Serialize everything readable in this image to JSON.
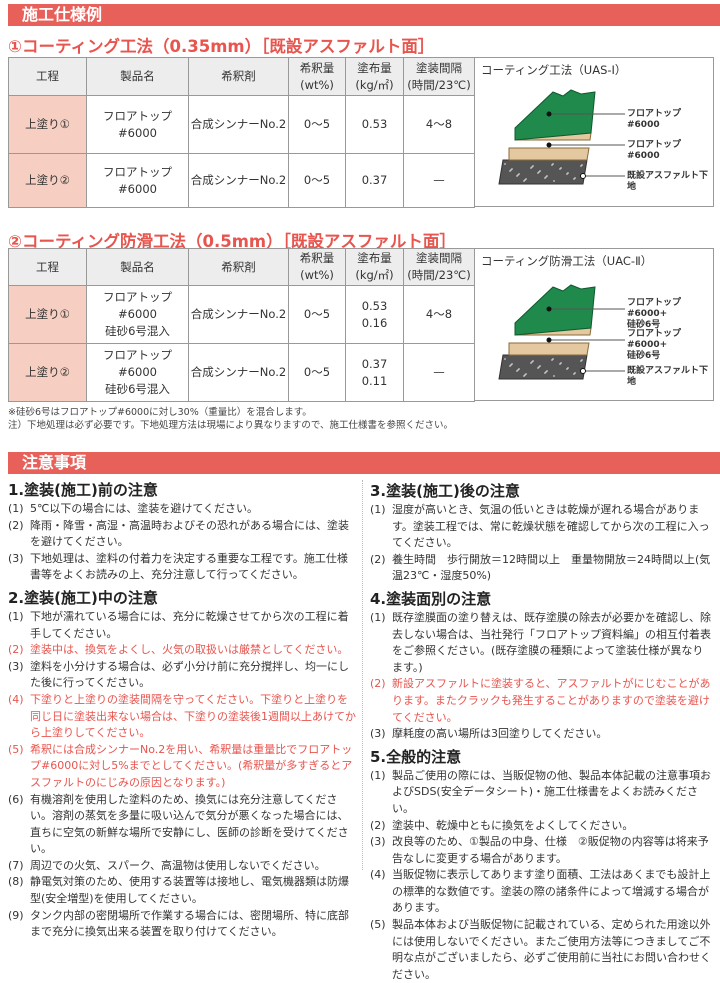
{
  "section_header_1": "施工仕様例",
  "spec1": {
    "title": "①コーティング工法（0.35mm）［既設アスファルト面］",
    "headers": [
      "工程",
      "製品名",
      "希釈剤",
      "希釈量\n(wt%)",
      "塗布量\n(kg/㎡)",
      "塗装間隔\n(時間/23℃)"
    ],
    "rows": [
      [
        "上塗り①",
        "フロアトップ#6000",
        "合成シンナーNo.2",
        "0〜5",
        "0.53",
        "4〜8"
      ],
      [
        "上塗り②",
        "フロアトップ#6000",
        "合成シンナーNo.2",
        "0〜5",
        "0.37",
        "—"
      ]
    ],
    "diagram": {
      "title": "コーティング工法（UAS-Ⅰ）",
      "labels": [
        "フロアトップ#6000",
        "フロアトップ#6000",
        "既設アスファルト下地"
      ]
    }
  },
  "spec2": {
    "title": "②コーティング防滑工法（0.5mm）［既設アスファルト面］",
    "headers": [
      "工程",
      "製品名",
      "希釈剤",
      "希釈量\n(wt%)",
      "塗布量\n(kg/㎡)",
      "塗装間隔\n(時間/23℃)"
    ],
    "rows": [
      [
        "上塗り①",
        "フロアトップ#6000\n硅砂6号混入",
        "合成シンナーNo.2",
        "0〜5",
        "0.53\n0.16",
        "4〜8"
      ],
      [
        "上塗り②",
        "フロアトップ#6000\n硅砂6号混入",
        "合成シンナーNo.2",
        "0〜5",
        "0.37\n0.11",
        "—"
      ]
    ],
    "diagram": {
      "title": "コーティング防滑工法（UAC-Ⅱ）",
      "labels": [
        "フロアトップ#6000+\n硅砂6号",
        "フロアトップ#6000+\n硅砂6号",
        "既設アスファルト下地"
      ]
    }
  },
  "footnotes": [
    "※硅砂6号はフロアトップ#6000に対し30%（重量比）を混合します。",
    "注）下地処理は必ず必要です。下地処理方法は現場により異なりますので、施工仕様書を参照ください。"
  ],
  "section_header_2": "注意事項",
  "colors": {
    "accent": "#e8605a",
    "warning_text": "#e8544e",
    "process_cell": "#f6cfc2",
    "coat_green": "#1f8a4c",
    "coat_beige": "#e3c8a0",
    "asphalt": "#555555"
  },
  "cautions": [
    {
      "title": "1.塗装(施工)前の注意",
      "items": [
        {
          "n": "(1)",
          "t": "5℃以下の場合には、塗装を避けてください。",
          "warn": false
        },
        {
          "n": "(2)",
          "t": "降雨・降雪・高湿・高温時およびその恐れがある場合には、塗装を避けてください。",
          "warn": false
        },
        {
          "n": "(3)",
          "t": "下地処理は、塗料の付着力を決定する重要な工程です。施工仕様書等をよくお読みの上、充分注意して行ってください。",
          "warn": false
        }
      ]
    },
    {
      "title": "2.塗装(施工)中の注意",
      "items": [
        {
          "n": "(1)",
          "t": "下地が濡れている場合には、充分に乾燥させてから次の工程に着手してください。",
          "warn": false
        },
        {
          "n": "(2)",
          "t": "塗装中は、換気をよくし、火気の取扱いは厳禁としてください。",
          "warn": true
        },
        {
          "n": "(3)",
          "t": "塗料を小分けする場合は、必ず小分け前に充分撹拌し、均一にした後に行ってください。",
          "warn": false
        },
        {
          "n": "(4)",
          "t": "下塗りと上塗りの塗装間隔を守ってください。下塗りと上塗りを同じ日に塗装出来ない場合は、下塗りの塗装後1週間以上あけてから上塗りしてください。",
          "warn": true
        },
        {
          "n": "(5)",
          "t": "希釈には合成シンナーNo.2を用い、希釈量は重量比でフロアトップ#6000に対し5%までとしてください。(希釈量が多すぎるとアスファルトのにじみの原因となります。)",
          "warn": true
        },
        {
          "n": "(6)",
          "t": "有機溶剤を使用した塗料のため、換気には充分注意してください。溶剤の蒸気を多量に吸い込んで気分が悪くなった場合には、直ちに空気の新鮮な場所で安静にし、医師の診断を受けてください。",
          "warn": false
        },
        {
          "n": "(7)",
          "t": "周辺での火気、スパーク、高温物は使用しないでください。",
          "warn": false
        },
        {
          "n": "(8)",
          "t": "静電気対策のため、使用する装置等は接地し、電気機器類は防爆型(安全増型)を使用してください。",
          "warn": false
        },
        {
          "n": "(9)",
          "t": "タンク内部の密閉場所で作業する場合には、密閉場所、特に底部まで充分に換気出来る装置を取り付けてください。",
          "warn": false
        }
      ]
    },
    {
      "title": "3.塗装(施工)後の注意",
      "items": [
        {
          "n": "(1)",
          "t": "湿度が高いとき、気温の低いときは乾燥が遅れる場合があります。塗装工程では、常に乾燥状態を確認してから次の工程に入ってください。",
          "warn": false
        },
        {
          "n": "(2)",
          "t": "養生時間　歩行開放＝12時間以上　重量物開放＝24時間以上(気温23℃・湿度50%)",
          "warn": false
        }
      ]
    },
    {
      "title": "4.塗装面別の注意",
      "items": [
        {
          "n": "(1)",
          "t": "既存塗膜面の塗り替えは、既存塗膜の除去が必要かを確認し、除去しない場合は、当社発行「フロアトップ資料編」の相互付着表をご参照ください。(既存塗膜の種類によって塗装仕様が異なります。)",
          "warn": false
        },
        {
          "n": "(2)",
          "t": "新設アスファルトに塗装すると、アスファルトがにじむことがあります。またクラックも発生することがありますので塗装を避けてください。",
          "warn": true
        },
        {
          "n": "(3)",
          "t": "摩耗度の高い場所は3回塗りしてください。",
          "warn": false
        }
      ]
    },
    {
      "title": "5.全般的注意",
      "items": [
        {
          "n": "(1)",
          "t": "製品ご使用の際には、当販促物の他、製品本体記載の注意事項およびSDS(安全データシート)・施工仕様書をよくお読みください。",
          "warn": false
        },
        {
          "n": "(2)",
          "t": "塗装中、乾燥中ともに換気をよくしてください。",
          "warn": false
        },
        {
          "n": "(3)",
          "t": "改良等のため、①製品の中身、仕様　②販促物の内容等は将来予告なしに変更する場合があります。",
          "warn": false
        },
        {
          "n": "(4)",
          "t": "当販促物に表示してあります塗り面積、工法はあくまでも設計上の標準的な数値です。塗装の際の諸条件によって増減する場合があります。",
          "warn": false
        },
        {
          "n": "(5)",
          "t": "製品本体および当販促物に記載されている、定められた用途以外には使用しないでください。またご使用方法等につきましてご不明な点がございましたら、必ずご使用前に当社にお問い合わせください。",
          "warn": false
        }
      ]
    }
  ]
}
